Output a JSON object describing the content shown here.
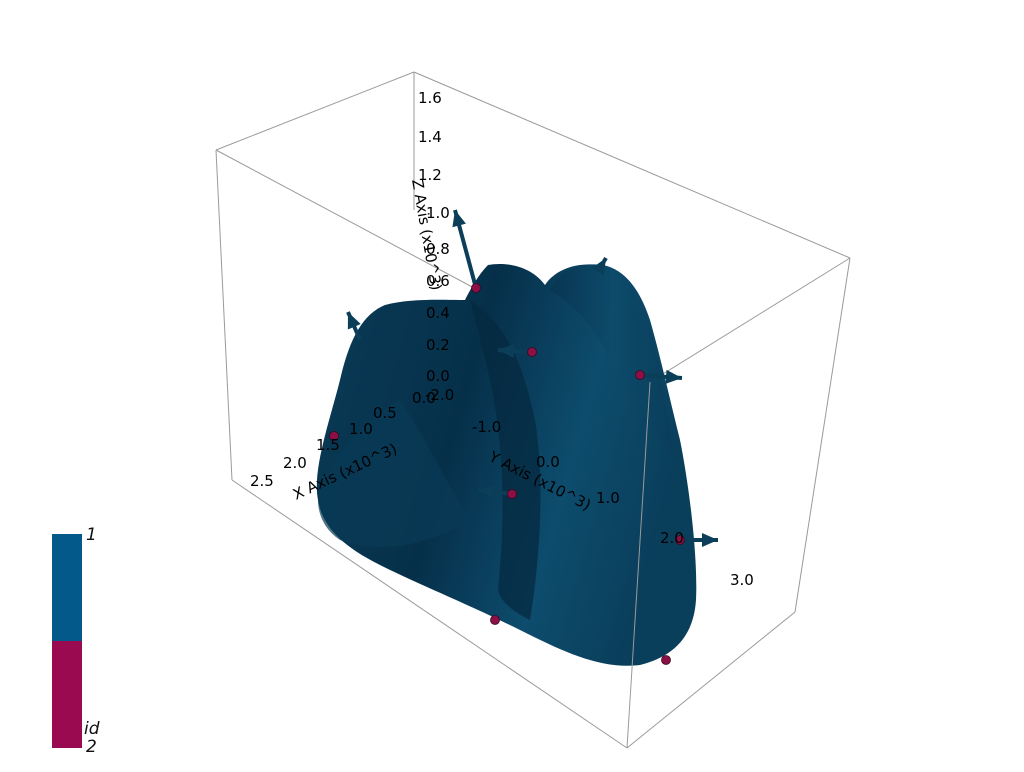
{
  "axes": {
    "x": {
      "title": "X Axis (x10^3)",
      "ticks": [
        "0.0",
        "0.5",
        "1.0",
        "1.5",
        "2.0",
        "2.5"
      ]
    },
    "y": {
      "title": "Y Axis (x10^3)",
      "ticks": [
        "-2.0",
        "-1.0",
        "0.0",
        "1.0",
        "2.0",
        "3.0"
      ]
    },
    "z": {
      "title": "Z Axis (x10^3)",
      "ticks": [
        "0.0",
        "0.2",
        "0.4",
        "0.6",
        "0.8",
        "1.0",
        "1.2",
        "1.4",
        "1.6"
      ]
    }
  },
  "legend": {
    "title": "id",
    "max_label": "1",
    "min_label": "2",
    "colors": {
      "top": "#02598a",
      "bottom": "#9a0a50"
    }
  },
  "colors": {
    "surface": "#0c4766",
    "surface_dark": "#062a40",
    "arrow": "#0b3e58",
    "point": "#8c0f45",
    "box_edge": "#9a9a9a"
  }
}
